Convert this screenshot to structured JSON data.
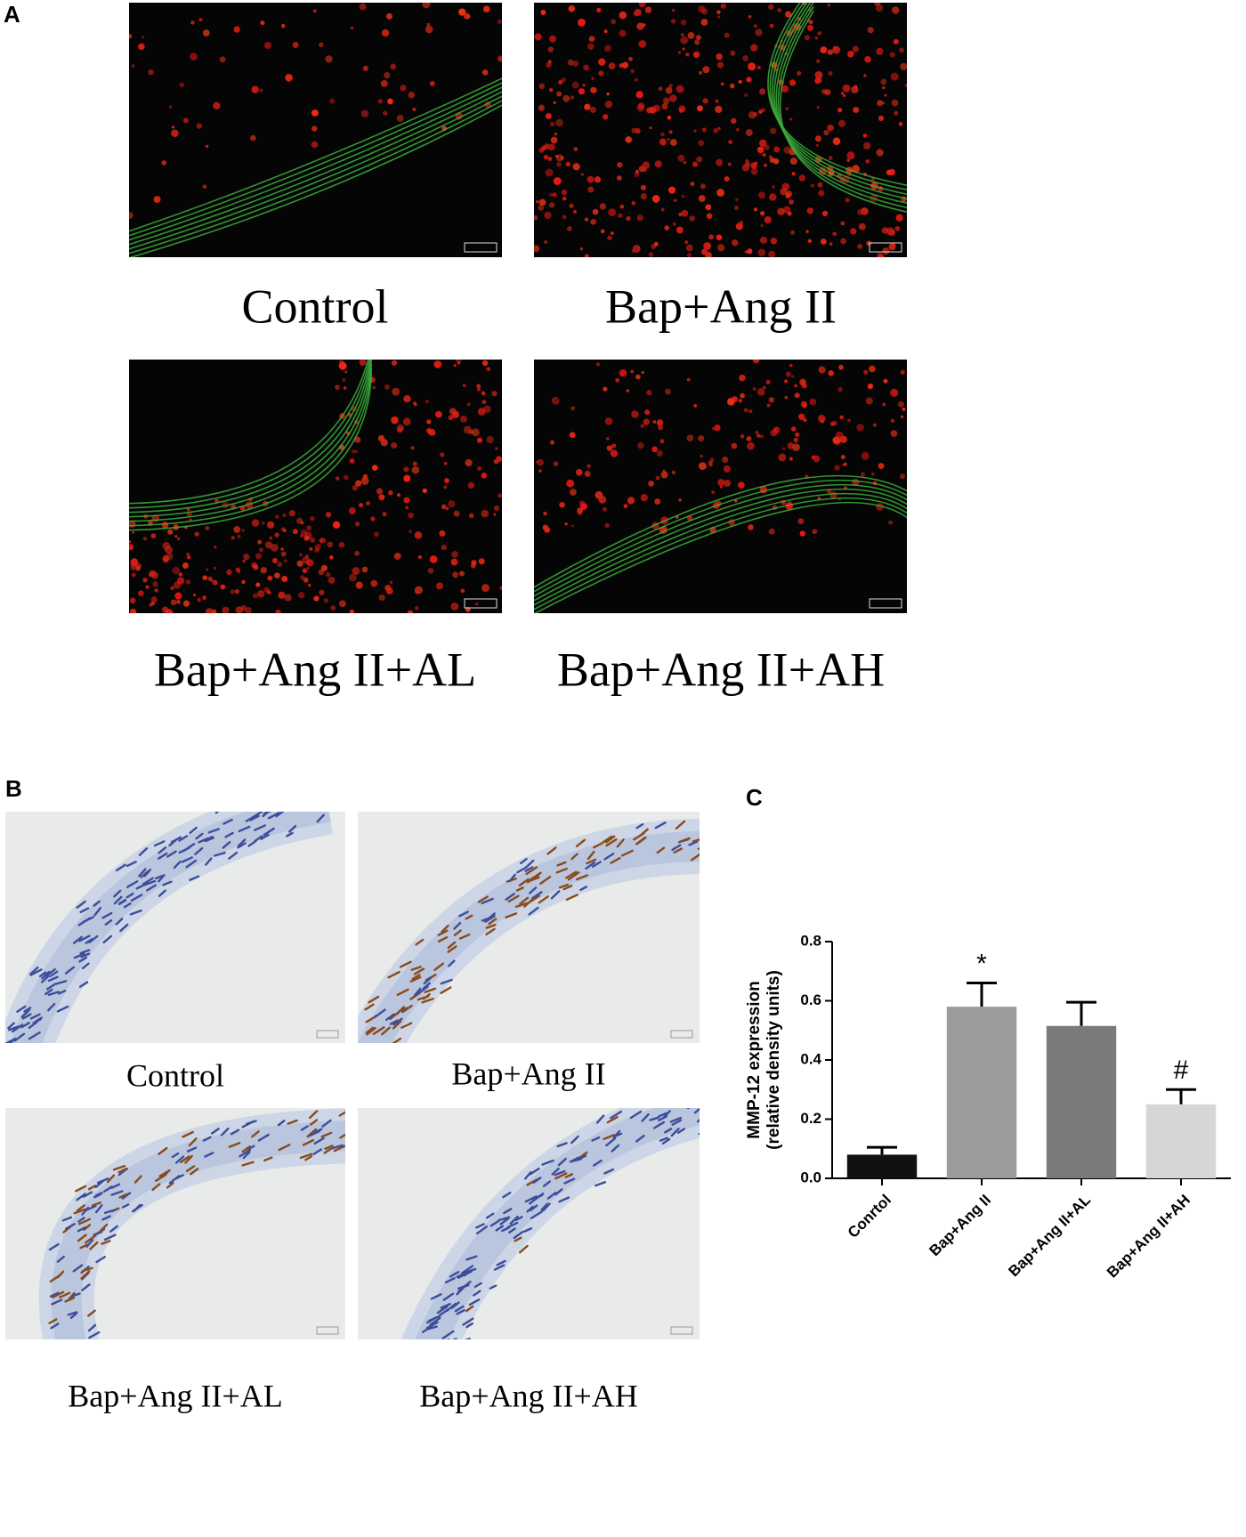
{
  "panel_a": {
    "label": "A",
    "captions": [
      "Control",
      "Bap+Ang II",
      "Bap+Ang II+AL",
      "Bap+Ang II+AH"
    ]
  },
  "panel_b": {
    "label": "B",
    "captions": [
      "Control",
      "Bap+Ang II",
      "Bap+Ang II+AL",
      "Bap+Ang II+AH"
    ]
  },
  "panel_c": {
    "label": "C"
  },
  "chart_data": {
    "type": "bar",
    "y_label": [
      "MMP-12 expression",
      "(relative density units)"
    ],
    "categories": [
      "Conrtol",
      "Bap+Ang II",
      "Bap+Ang II+AL",
      "Bap+Ang II+AH"
    ],
    "values": [
      0.08,
      0.58,
      0.515,
      0.25
    ],
    "errors": [
      0.025,
      0.08,
      0.08,
      0.05
    ],
    "colors": [
      "#111111",
      "#9b9b9b",
      "#7a7a7a",
      "#d6d6d6"
    ],
    "significance": [
      null,
      "*",
      null,
      "#"
    ],
    "ylim": [
      0,
      0.8
    ],
    "yticks": [
      {
        "value": 0,
        "label": "0.0"
      },
      0.2,
      0.4,
      0.6,
      0.8
    ]
  }
}
